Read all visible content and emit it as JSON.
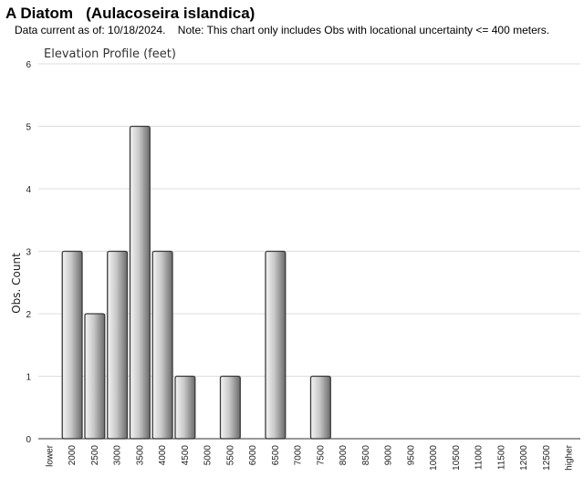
{
  "page": {
    "title": "A Diatom   (Aulacoseira islandica)",
    "subtitle": "Data current as of: 10/18/2024.    Note: This chart only includes Obs with locational uncertainty <= 400 meters."
  },
  "chart_data": {
    "type": "bar",
    "title": "Elevation Profile (feet)",
    "xlabel": "",
    "ylabel": "Obs. Count",
    "ylim": [
      0,
      6
    ],
    "yticks": [
      0,
      1,
      2,
      3,
      4,
      5,
      6
    ],
    "grid": true,
    "legend": "none",
    "categories": [
      "lower",
      "2000",
      "2500",
      "3000",
      "3500",
      "4000",
      "4500",
      "5000",
      "5500",
      "6000",
      "6500",
      "7000",
      "7500",
      "8000",
      "8500",
      "9000",
      "9500",
      "10000",
      "10500",
      "11000",
      "11500",
      "12000",
      "12500",
      "higher"
    ],
    "values": [
      0,
      3,
      2,
      3,
      5,
      3,
      1,
      0,
      1,
      0,
      3,
      0,
      1,
      0,
      0,
      0,
      0,
      0,
      0,
      0,
      0,
      0,
      0,
      0
    ],
    "colors": {
      "bar_light": "#f4f4f4",
      "bar_dark": "#6a6a6a",
      "bar_stroke": "#3a3a3a",
      "grid": "#dddddd"
    }
  }
}
